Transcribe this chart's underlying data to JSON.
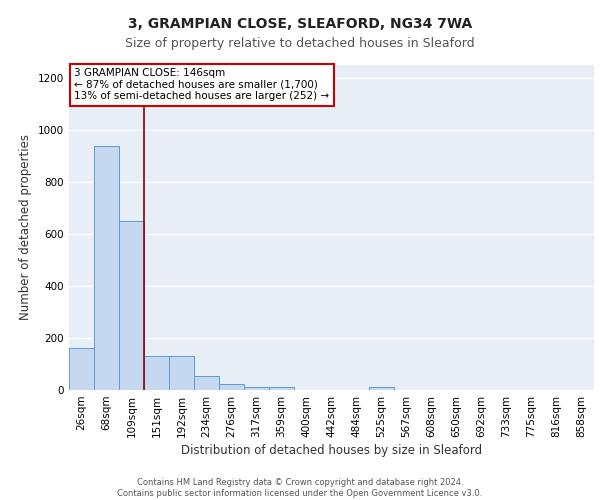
{
  "title1": "3, GRAMPIAN CLOSE, SLEAFORD, NG34 7WA",
  "title2": "Size of property relative to detached houses in Sleaford",
  "xlabel": "Distribution of detached houses by size in Sleaford",
  "ylabel": "Number of detached properties",
  "categories": [
    "26sqm",
    "68sqm",
    "109sqm",
    "151sqm",
    "192sqm",
    "234sqm",
    "276sqm",
    "317sqm",
    "359sqm",
    "400sqm",
    "442sqm",
    "484sqm",
    "525sqm",
    "567sqm",
    "608sqm",
    "650sqm",
    "692sqm",
    "733sqm",
    "775sqm",
    "816sqm",
    "858sqm"
  ],
  "values": [
    160,
    940,
    650,
    130,
    130,
    55,
    25,
    12,
    12,
    0,
    0,
    0,
    12,
    0,
    0,
    0,
    0,
    0,
    0,
    0,
    0
  ],
  "bar_color": "#c5d8f0",
  "bar_edge_color": "#5b9bd5",
  "vline_x_index": 2.5,
  "vline_color": "#8b0000",
  "annotation_text": "3 GRAMPIAN CLOSE: 146sqm\n← 87% of detached houses are smaller (1,700)\n13% of semi-detached houses are larger (252) →",
  "annotation_box_color": "#ffffff",
  "annotation_box_edge": "#cc0000",
  "ylim": [
    0,
    1250
  ],
  "yticks": [
    0,
    200,
    400,
    600,
    800,
    1000,
    1200
  ],
  "background_color": "#e8eef6",
  "footer_text": "Contains HM Land Registry data © Crown copyright and database right 2024.\nContains public sector information licensed under the Open Government Licence v3.0.",
  "title1_fontsize": 10,
  "title2_fontsize": 9,
  "xlabel_fontsize": 8.5,
  "ylabel_fontsize": 8.5,
  "tick_fontsize": 7.5,
  "footer_fontsize": 6.0
}
